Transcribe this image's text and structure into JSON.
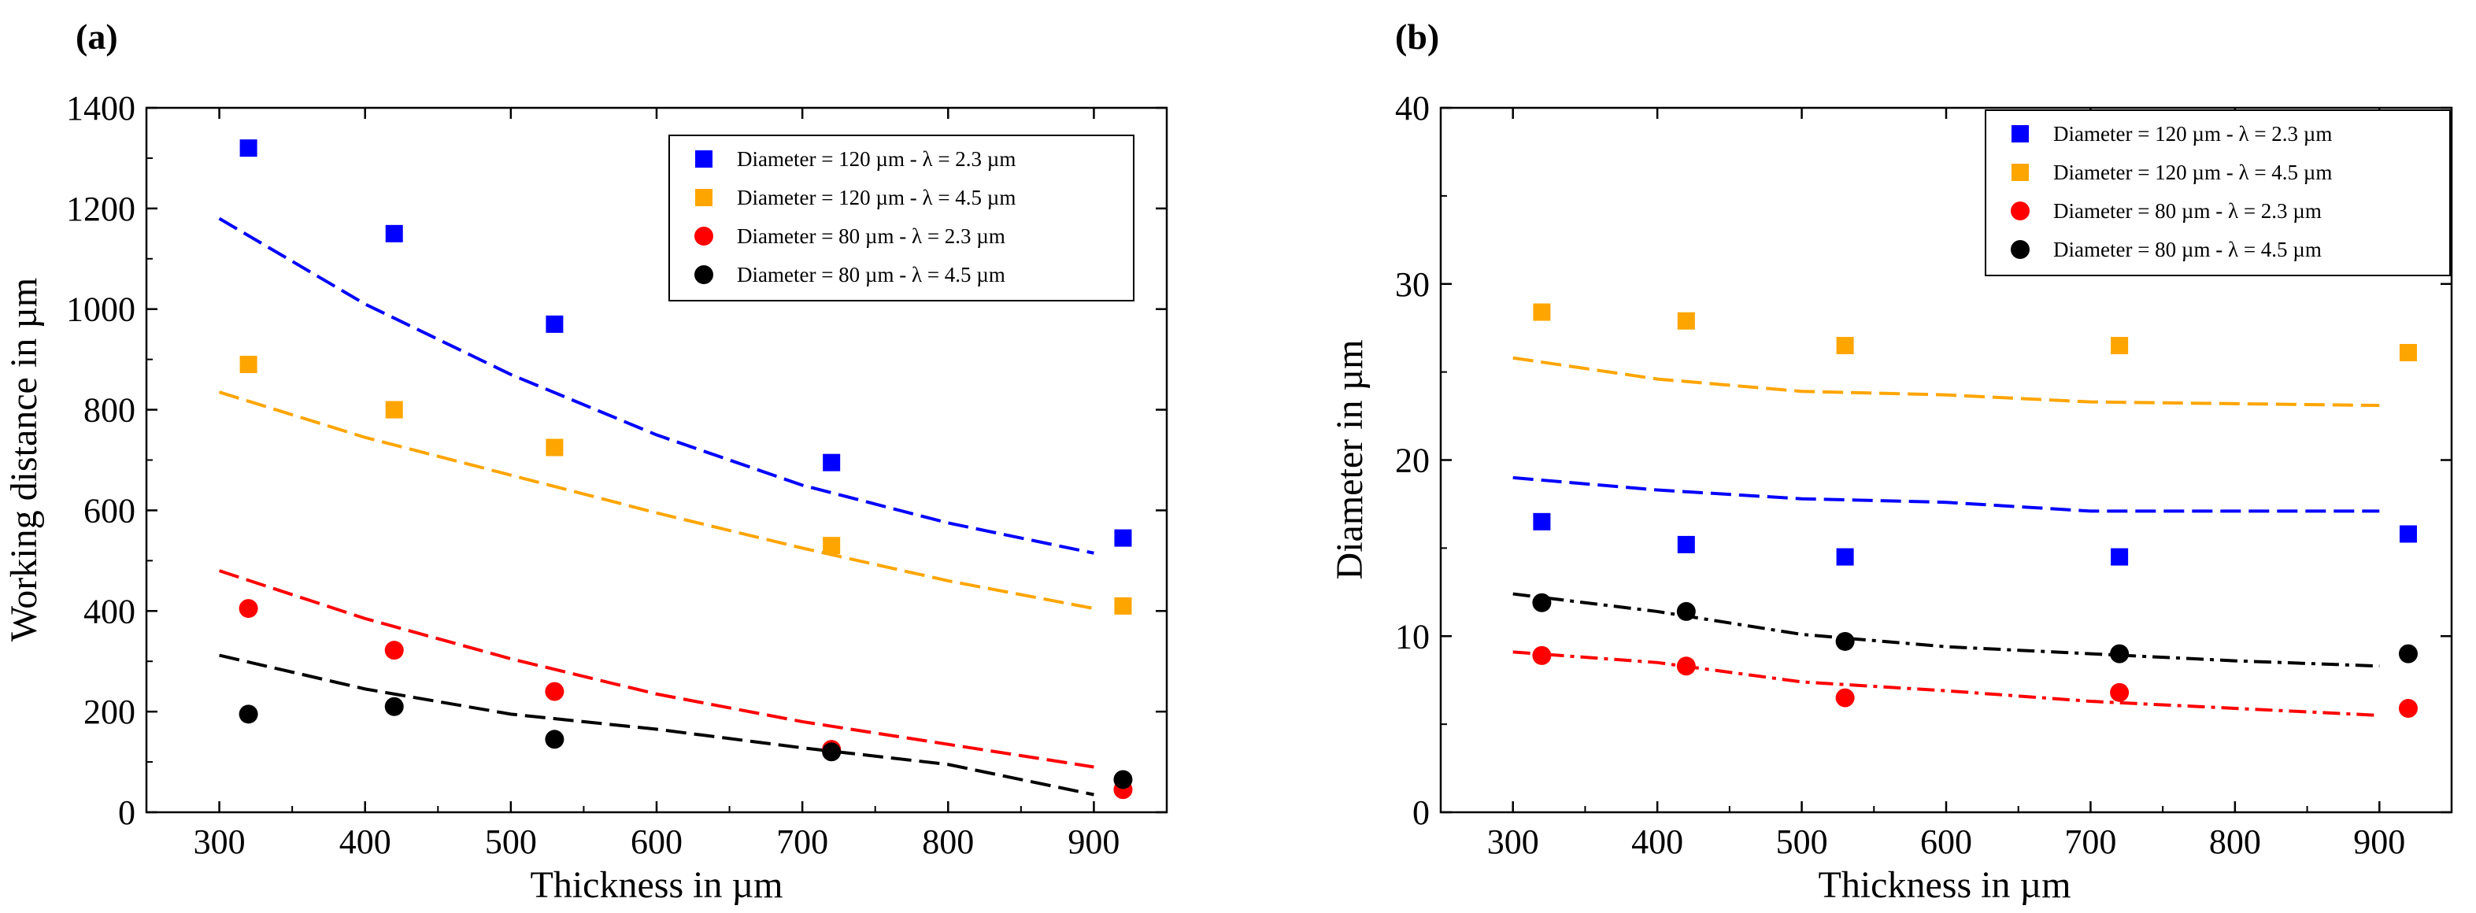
{
  "chart_data": [
    {
      "panel_label": "(a)",
      "type": "scatter",
      "xlabel": "Thickness in  µm",
      "ylabel": "Working distance in µm",
      "xlim": [
        250,
        950
      ],
      "ylim": [
        0,
        1400
      ],
      "xticks": [
        300,
        400,
        500,
        600,
        700,
        800,
        900
      ],
      "yticks": [
        0,
        200,
        400,
        600,
        800,
        1000,
        1200,
        1400
      ],
      "legend_position": "top-right",
      "series": [
        {
          "name": "Diameter = 120 µm - λ = 2.3 µm",
          "marker": "square",
          "color": "#0000ff",
          "points_x": [
            320,
            420,
            530,
            720,
            920
          ],
          "points_y": [
            1320,
            1150,
            970,
            695,
            545
          ],
          "fit_x": [
            300,
            400,
            500,
            600,
            700,
            800,
            900
          ],
          "fit_y": [
            1180,
            1010,
            870,
            750,
            650,
            575,
            515
          ]
        },
        {
          "name": "Diameter = 120 µm - λ = 4.5 µm",
          "marker": "square",
          "color": "#ffa500",
          "points_x": [
            320,
            420,
            530,
            720,
            920
          ],
          "points_y": [
            890,
            800,
            725,
            530,
            410
          ],
          "fit_x": [
            300,
            400,
            500,
            600,
            700,
            800,
            900
          ],
          "fit_y": [
            835,
            745,
            670,
            595,
            525,
            460,
            405
          ]
        },
        {
          "name": "Diameter = 80 µm - λ = 2.3 µm",
          "marker": "circle",
          "color": "#ff0000",
          "points_x": [
            320,
            420,
            530,
            720,
            920
          ],
          "points_y": [
            405,
            322,
            240,
            125,
            45
          ],
          "fit_x": [
            300,
            400,
            500,
            600,
            700,
            800,
            900
          ],
          "fit_y": [
            480,
            385,
            305,
            235,
            180,
            135,
            90
          ]
        },
        {
          "name": "Diameter = 80 µm - λ = 4.5 µm",
          "marker": "circle",
          "color": "#000000",
          "points_x": [
            320,
            420,
            530,
            720,
            920
          ],
          "points_y": [
            195,
            210,
            145,
            120,
            65
          ],
          "fit_x": [
            300,
            400,
            500,
            600,
            700,
            800,
            900
          ],
          "fit_y": [
            312,
            245,
            195,
            165,
            128,
            95,
            35
          ]
        }
      ]
    },
    {
      "panel_label": "(b)",
      "type": "scatter",
      "xlabel": "Thickness in µm",
      "ylabel": "Diameter in µm",
      "xlim": [
        250,
        950
      ],
      "ylim": [
        0,
        40
      ],
      "xticks": [
        300,
        400,
        500,
        600,
        700,
        800,
        900
      ],
      "yticks": [
        0,
        10,
        20,
        30,
        40
      ],
      "legend_position": "top-right",
      "series": [
        {
          "name": "Diameter = 120 µm - λ = 2.3 µm",
          "marker": "square",
          "color": "#0000ff",
          "points_x": [
            320,
            420,
            530,
            720,
            920
          ],
          "points_y": [
            16.5,
            15.2,
            14.5,
            14.5,
            15.8
          ],
          "fit_x": [
            300,
            400,
            500,
            600,
            700,
            800,
            900
          ],
          "fit_y": [
            19.0,
            18.3,
            17.8,
            17.6,
            17.1,
            17.1,
            17.1
          ]
        },
        {
          "name": "Diameter = 120 µm - λ = 4.5 µm",
          "marker": "square",
          "color": "#ffa500",
          "points_x": [
            320,
            420,
            530,
            720,
            920
          ],
          "points_y": [
            28.4,
            27.9,
            26.5,
            26.5,
            26.1
          ],
          "fit_x": [
            300,
            400,
            500,
            600,
            700,
            800,
            900
          ],
          "fit_y": [
            25.8,
            24.6,
            23.9,
            23.7,
            23.3,
            23.2,
            23.1
          ]
        },
        {
          "name": "Diameter = 80 µm - λ = 2.3 µm",
          "marker": "circle",
          "color": "#ff0000",
          "points_x": [
            320,
            420,
            530,
            720,
            920
          ],
          "points_y": [
            8.9,
            8.3,
            6.5,
            6.8,
            5.9
          ],
          "fit_x": [
            300,
            400,
            500,
            600,
            700,
            800,
            900
          ],
          "fit_y": [
            9.1,
            8.5,
            7.4,
            6.9,
            6.3,
            5.9,
            5.5
          ]
        },
        {
          "name": "Diameter = 80 µm - λ = 4.5 µm",
          "marker": "circle",
          "color": "#000000",
          "points_x": [
            320,
            420,
            530,
            720,
            920
          ],
          "points_y": [
            11.9,
            11.4,
            9.7,
            9.0,
            9.0
          ],
          "fit_x": [
            300,
            400,
            500,
            600,
            700,
            800,
            900
          ],
          "fit_y": [
            12.4,
            11.4,
            10.1,
            9.4,
            9.0,
            8.6,
            8.3
          ]
        }
      ]
    }
  ]
}
